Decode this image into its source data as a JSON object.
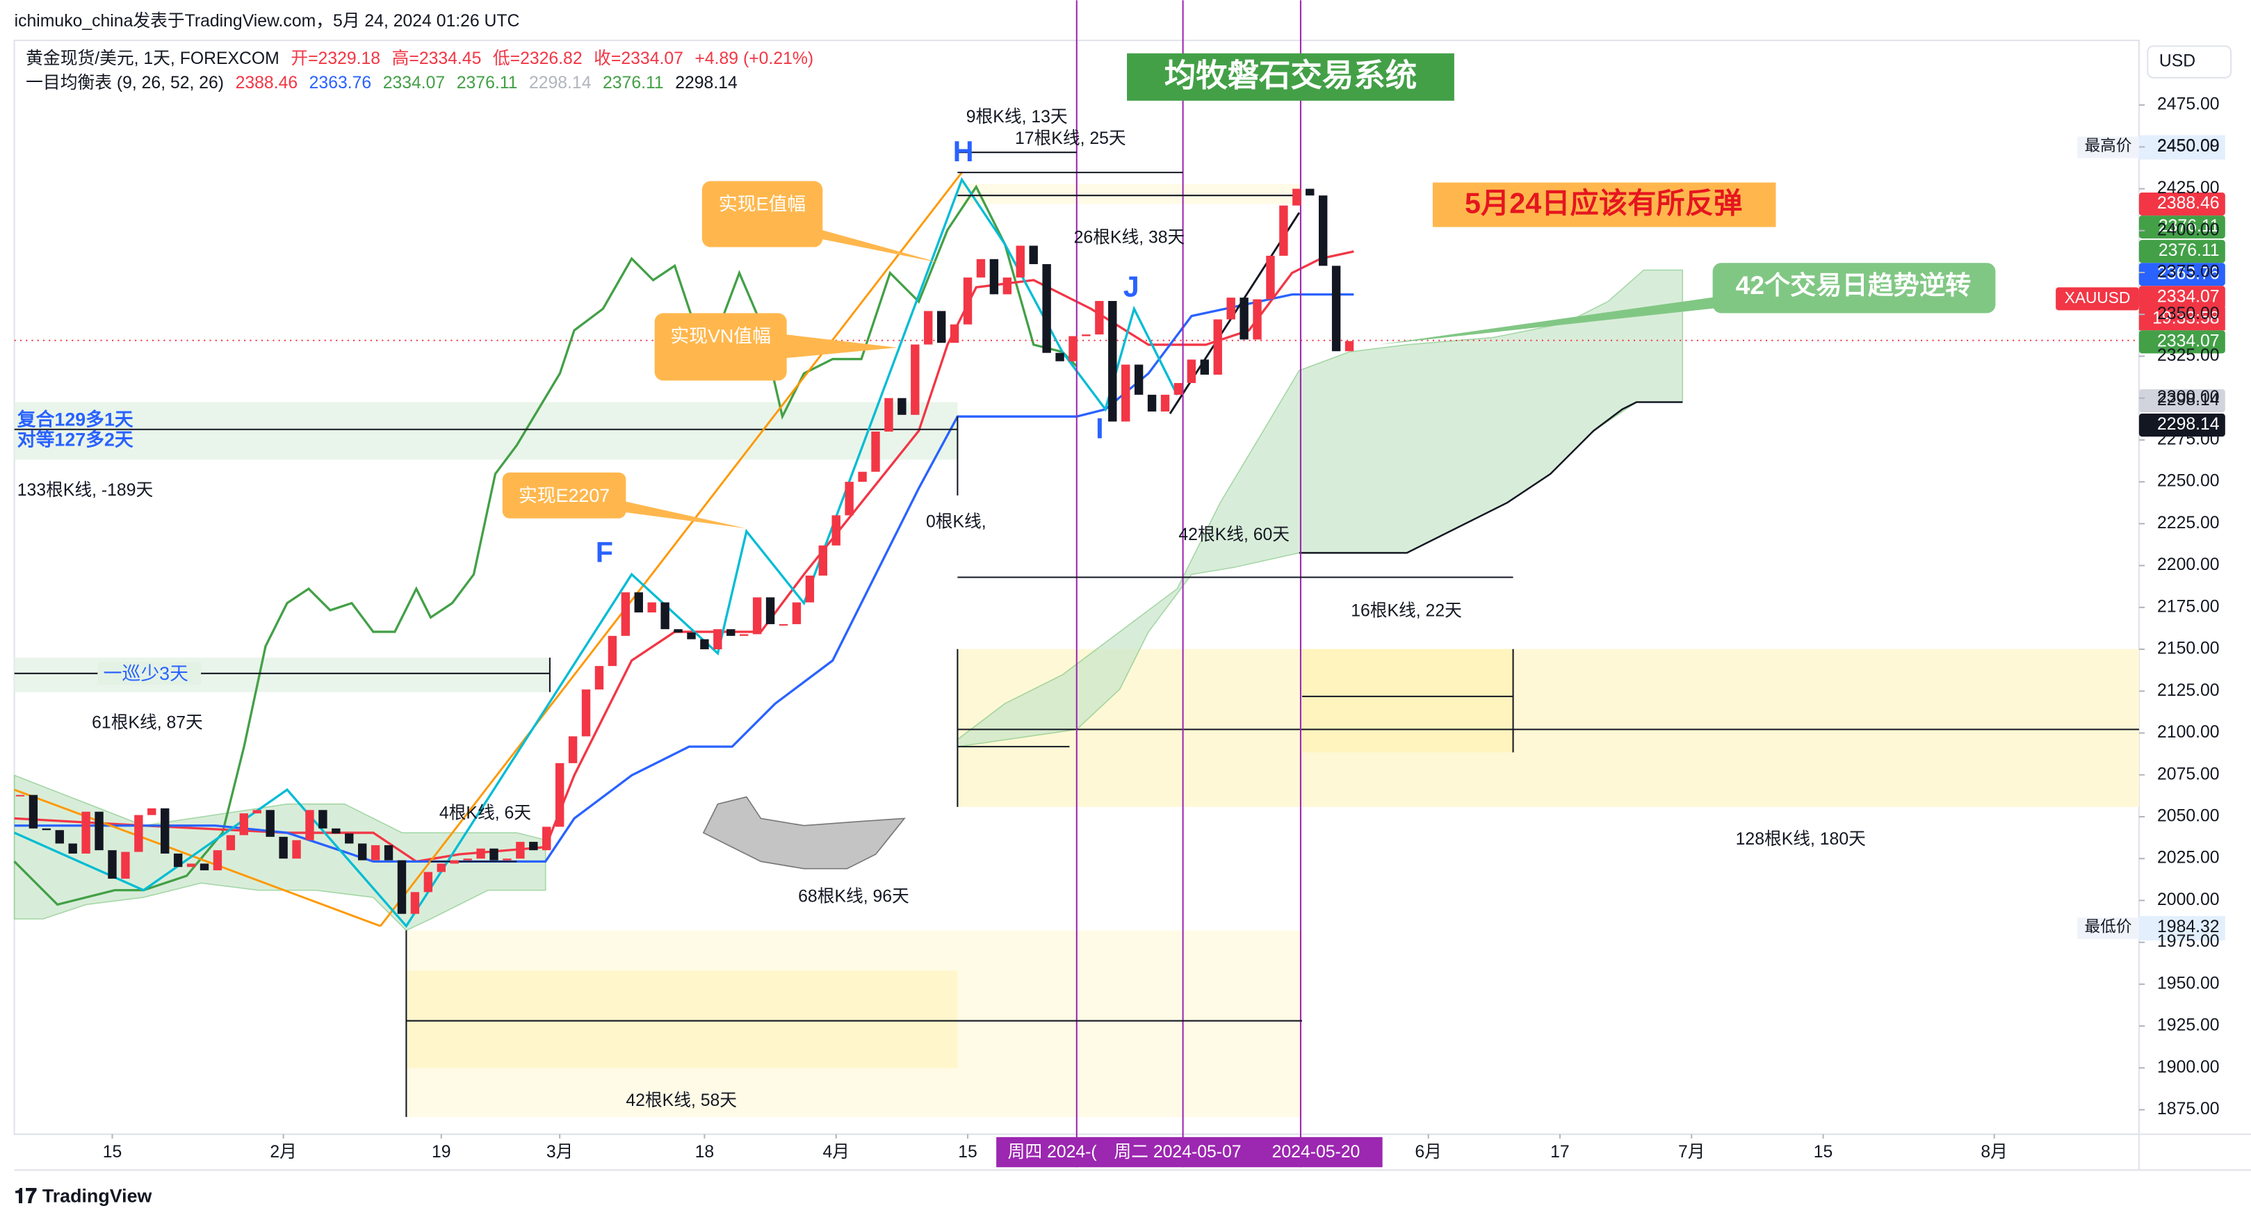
{
  "header": {
    "attribution": "ichimuko_china发表于TradingView.com，5月 24, 2024 01:26 UTC"
  },
  "chart_data": {
    "type": "candlestick",
    "title": "黄金现货/美元, 1天, FOREXCOM",
    "ohlc": [
      {
        "text": "开=2329.18",
        "color": "#f23645"
      },
      {
        "text": "高=2334.45",
        "color": "#f23645"
      },
      {
        "text": "低=2326.82",
        "color": "#f23645"
      },
      {
        "text": "收=2334.07",
        "color": "#f23645"
      },
      {
        "text": "+4.89 (+0.21%)",
        "color": "#f23645"
      }
    ],
    "indicator": {
      "name": "一目均衡表 (9, 26, 52, 26)",
      "values": [
        {
          "value": 2388.46,
          "color": "#f23645"
        },
        {
          "value": 2363.76,
          "color": "#2962ff"
        },
        {
          "value": 2334.07,
          "color": "#43a047"
        },
        {
          "value": 2376.11,
          "color": "#43a047"
        },
        {
          "value": 2298.14,
          "color": "#b2b5be"
        },
        {
          "value": 2376.11,
          "color": "#43a047"
        },
        {
          "value": 2298.14,
          "color": "#131722"
        }
      ]
    },
    "close": [
      2063,
      2043,
      2042,
      2034,
      2028,
      2053,
      2030,
      2013,
      2029,
      2051,
      2055,
      2028,
      2020,
      2022,
      2018,
      2030,
      2039,
      2052,
      2054,
      2038,
      2025,
      2036,
      2054,
      2043,
      2040,
      2034,
      2024,
      2033,
      2024,
      1992,
      2005,
      2017,
      2022,
      2024,
      2025,
      2031,
      2024,
      2025,
      2035,
      2030,
      2044,
      2082,
      2098,
      2126,
      2140,
      2158,
      2184,
      2172,
      2178,
      2162,
      2160,
      2156,
      2150,
      2162,
      2158,
      2159,
      2181,
      2165,
      2165,
      2178,
      2194,
      2212,
      2230,
      2250,
      2256,
      2280,
      2300,
      2290,
      2332,
      2352,
      2333,
      2344,
      2372,
      2383,
      2362,
      2372,
      2391,
      2380,
      2327,
      2322,
      2337,
      2338,
      2358,
      2286,
      2320,
      2302,
      2292,
      2302,
      2309,
      2323,
      2314,
      2347,
      2360,
      2335,
      2359,
      2385,
      2415,
      2425,
      2421,
      2379,
      2328,
      2334.07
    ],
    "xlim": [
      -0.44,
      161
    ],
    "xticks": [
      {
        "value": 7,
        "label": "15"
      },
      {
        "value": 20,
        "label": "2月"
      },
      {
        "value": 32,
        "label": "19"
      },
      {
        "value": 41,
        "label": "3月"
      },
      {
        "value": 52,
        "label": "18"
      },
      {
        "value": 62,
        "label": "4月"
      },
      {
        "value": 72,
        "label": "15"
      },
      {
        "value": 107,
        "label": "6月"
      },
      {
        "value": 117,
        "label": "17"
      },
      {
        "value": 127,
        "label": "7月"
      },
      {
        "value": 137,
        "label": "15"
      },
      {
        "value": 150,
        "label": "8月"
      }
    ],
    "date_markers": [
      "周四 2024-(",
      "周二 2024-05-07",
      "2024-05-20"
    ],
    "ylim": [
      1860.4,
      2513.6
    ],
    "yticks": [
      {
        "value": 1875,
        "label": "1875.00"
      },
      {
        "value": 1900,
        "label": "1900.00"
      },
      {
        "value": 1925,
        "label": "1925.00"
      },
      {
        "value": 1950,
        "label": "1950.00"
      },
      {
        "value": 1975,
        "label": "1975.00"
      },
      {
        "value": 2000,
        "label": "2000.00"
      },
      {
        "value": 2025,
        "label": "2025.00"
      },
      {
        "value": 2050,
        "label": "2050.00"
      },
      {
        "value": 2075,
        "label": "2075.00"
      },
      {
        "value": 2100,
        "label": "2100.00"
      },
      {
        "value": 2125,
        "label": "2125.00"
      },
      {
        "value": 2150,
        "label": "2150.00"
      },
      {
        "value": 2175,
        "label": "2175.00"
      },
      {
        "value": 2200,
        "label": "2200.00"
      },
      {
        "value": 2225,
        "label": "2225.00"
      },
      {
        "value": 2250,
        "label": "2250.00"
      },
      {
        "value": 2275,
        "label": "2275.00"
      },
      {
        "value": 2300,
        "label": "2300.00"
      },
      {
        "value": 2325,
        "label": "2325.00"
      },
      {
        "value": 2350,
        "label": "2350.00"
      },
      {
        "value": 2375,
        "label": "2375.00"
      },
      {
        "value": 2400,
        "label": "2400.00"
      },
      {
        "value": 2425,
        "label": "2425.00"
      },
      {
        "value": 2450,
        "label": "2450.00"
      },
      {
        "value": 2475,
        "label": "2475.00"
      }
    ],
    "up_color": "#f23645",
    "down_color": "#131722",
    "annotations": {
      "system": "均牧磐石交易系统",
      "forecast": "5月24日应该有所反弹",
      "reversal": "42个交易日趋势逆转",
      "e_range": "实现E值幅",
      "vn_range": "实现VN值幅",
      "e2207": "实现E2207",
      "h": "H",
      "j": "J",
      "i": "I",
      "f": "F",
      "compound": "复合129多1天",
      "equal": "对等127多2天",
      "cycle": "一巡少3天",
      "counts": [
        "133根K线, -189天",
        "61根K线, 87天",
        "4根K线, 6天",
        "68根K线, 96天",
        "42根K线, 58天",
        "9根K线, 13天",
        "17根K线, 25天",
        "26根K线, 38天",
        "0根K线,",
        "42根K线, 60天",
        "16根K线, 22天",
        "128根K线, 180天"
      ]
    }
  },
  "price_scale": {
    "currency": "USD",
    "high_label": "最高价",
    "high": 2450.09,
    "low_label": "最低价",
    "low": 1984.32,
    "symbol": "XAUUSD",
    "countdown": "19:33:58",
    "tags": [
      {
        "value": 2388.46,
        "color": "#f23645"
      },
      {
        "value": 2376.11,
        "color": "#43a047"
      },
      {
        "value": 2376.11,
        "color": "#43a047"
      },
      {
        "value": 2363.76,
        "color": "#2962ff"
      },
      {
        "value": 2334.07,
        "color": "#f23645"
      },
      {
        "value": 2334.07,
        "color": "#43a047"
      },
      {
        "value": 2298.14,
        "color": "#d1d4dc"
      },
      {
        "value": 2298.14,
        "color": "#131722"
      }
    ]
  },
  "footer": {
    "brand": "TradingView"
  }
}
